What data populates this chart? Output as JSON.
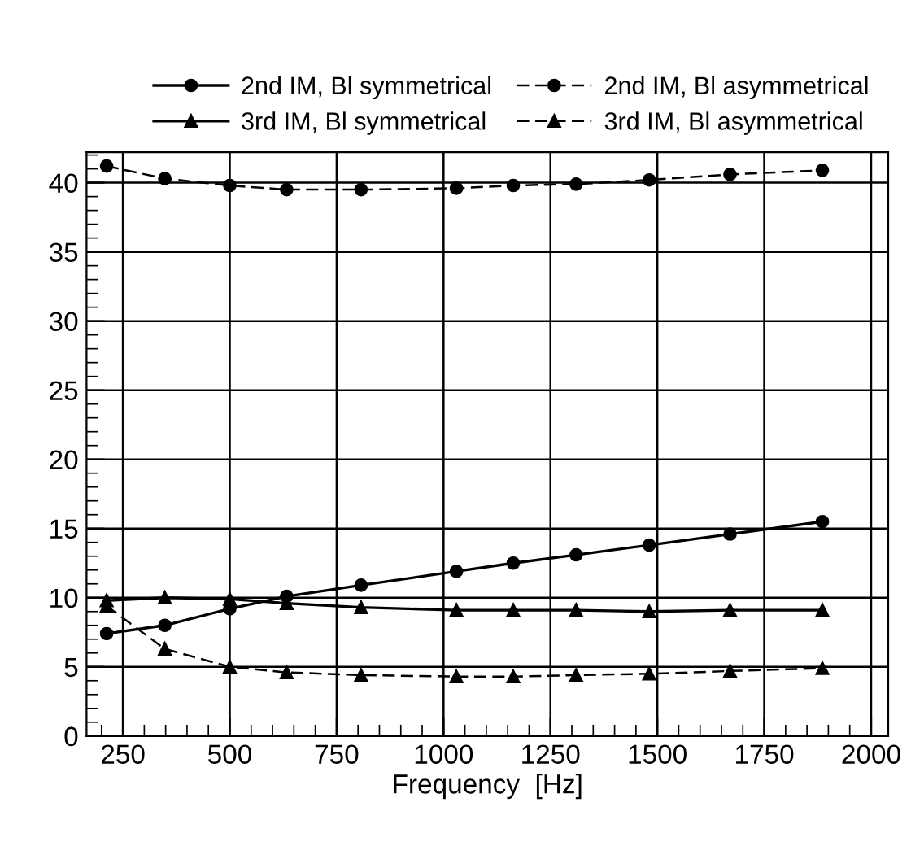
{
  "chart_data": {
    "type": "line",
    "xlabel": "Frequency  [Hz]",
    "xlim": [
      165,
      2040
    ],
    "ylim": [
      0,
      42.2
    ],
    "xticks": [
      250,
      500,
      750,
      1000,
      1250,
      1500,
      1750,
      2000
    ],
    "yticks": [
      0,
      5,
      10,
      15,
      20,
      25,
      30,
      35,
      40
    ],
    "grid": true,
    "legend": "top",
    "series": [
      {
        "name": "2nd IM, Bl symmetrical",
        "color": "#000000",
        "marker": "circle",
        "line_style": "solid",
        "x": [
          212,
          348,
          500,
          633,
          807,
          1030,
          1163,
          1310,
          1481,
          1670,
          1886
        ],
        "values": [
          7.4,
          8.0,
          9.2,
          10.1,
          10.9,
          11.9,
          12.5,
          13.1,
          13.8,
          14.6,
          15.5
        ]
      },
      {
        "name": "2nd IM, Bl asymmetrical",
        "color": "#000000",
        "marker": "circle",
        "line_style": "dashed",
        "x": [
          212,
          348,
          500,
          633,
          807,
          1030,
          1163,
          1310,
          1481,
          1670,
          1886
        ],
        "values": [
          41.2,
          40.3,
          39.8,
          39.5,
          39.5,
          39.6,
          39.8,
          39.9,
          40.2,
          40.6,
          40.9
        ]
      },
      {
        "name": "3rd IM, Bl symmetrical",
        "color": "#000000",
        "marker": "triangle",
        "line_style": "solid",
        "x": [
          212,
          348,
          500,
          633,
          807,
          1030,
          1163,
          1310,
          1481,
          1670,
          1886
        ],
        "values": [
          9.8,
          10.0,
          9.9,
          9.6,
          9.3,
          9.1,
          9.1,
          9.1,
          9.0,
          9.1,
          9.1
        ]
      },
      {
        "name": "3rd IM, Bl asymmetrical",
        "color": "#000000",
        "marker": "triangle",
        "line_style": "dashed",
        "x": [
          212,
          348,
          500,
          633,
          807,
          1030,
          1163,
          1310,
          1481,
          1670,
          1886
        ],
        "values": [
          9.4,
          6.3,
          5.0,
          4.6,
          4.4,
          4.3,
          4.3,
          4.4,
          4.5,
          4.7,
          4.9
        ]
      }
    ]
  }
}
